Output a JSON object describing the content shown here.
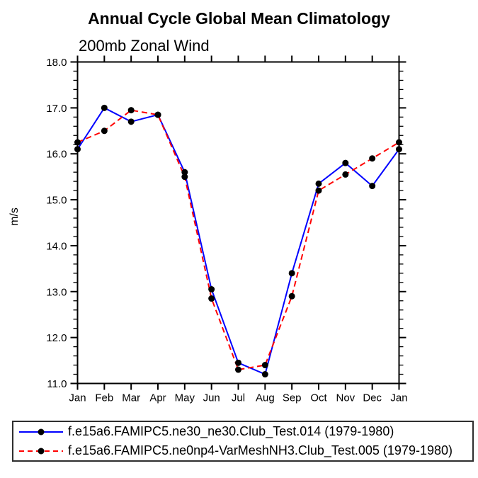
{
  "chart": {
    "title": "Annual Cycle Global Mean Climatology",
    "subtitle": "200mb Zonal Wind",
    "ylabel": "m/s"
  },
  "chart_data": {
    "type": "line",
    "title": "Annual Cycle Global Mean Climatology",
    "subtitle": "200mb Zonal Wind",
    "xlabel": "",
    "ylabel": "m/s",
    "categories": [
      "Jan",
      "Feb",
      "Mar",
      "Apr",
      "May",
      "Jun",
      "Jul",
      "Aug",
      "Sep",
      "Oct",
      "Nov",
      "Dec",
      "Jan"
    ],
    "ylim": [
      11.0,
      18.0
    ],
    "ytick_step": 1.0,
    "ytick_minor_step": 0.2,
    "ytick_labels": [
      "11.0",
      "12.0",
      "13.0",
      "14.0",
      "15.0",
      "16.0",
      "17.0",
      "18.0"
    ],
    "grid": false,
    "legend_position": "bottom",
    "marker_color": "#000000",
    "series": [
      {
        "name": "f.e15a6.FAMIPC5.ne30_ne30.Club_Test.014 (1979-1980)",
        "color": "#0000ff",
        "line_style": "solid",
        "marker": "black-circle",
        "values": [
          16.1,
          17.0,
          16.7,
          16.85,
          15.6,
          13.05,
          11.45,
          11.2,
          13.4,
          15.35,
          15.8,
          15.3,
          16.1
        ]
      },
      {
        "name": "f.e15a6.FAMIPC5.ne0np4-VarMeshNH3.Club_Test.005 (1979-1980)",
        "color": "#ff0000",
        "line_style": "dashed",
        "marker": "black-circle",
        "values": [
          16.25,
          16.5,
          16.95,
          16.85,
          15.5,
          12.85,
          11.3,
          11.4,
          12.9,
          15.2,
          15.55,
          15.9,
          16.25
        ]
      }
    ]
  },
  "colors": {
    "axis": "#000000",
    "background": "#ffffff",
    "series1": "#0000ff",
    "series2": "#ff0000"
  }
}
